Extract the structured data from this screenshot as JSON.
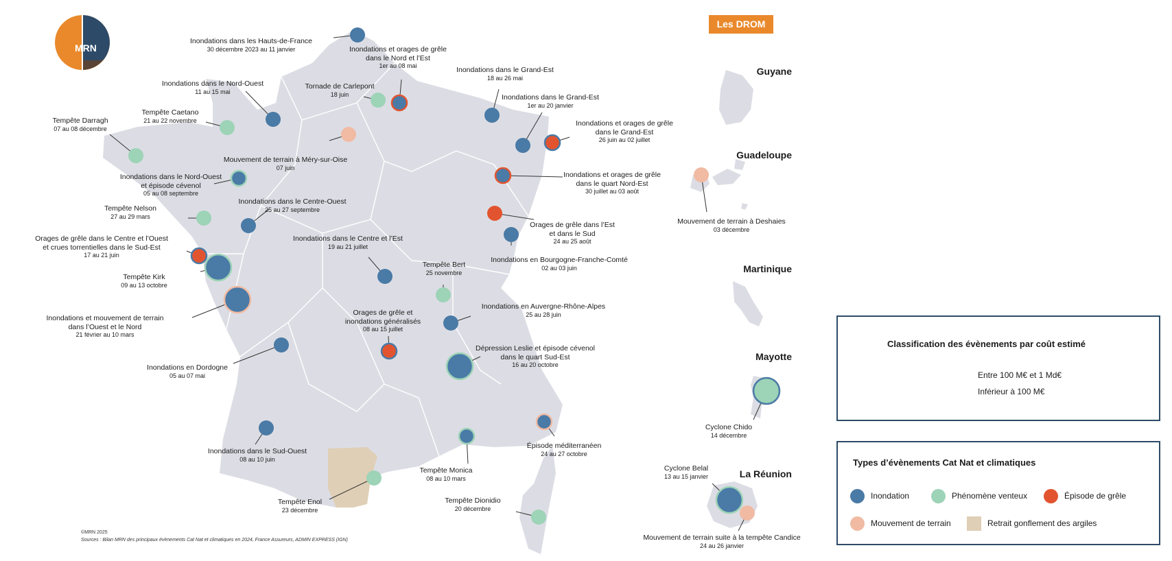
{
  "logo": {
    "text": "MRN"
  },
  "credits": {
    "copyright": "©MRN 2025",
    "sources": "Sources : Bilan MRN des principaux évènements Cat Nat et climatiques en 2024, France Assureurs, ADMIN EXPRESS (IGN)"
  },
  "drom": {
    "badge": "Les DROM",
    "territories": [
      "Guyane",
      "Guadeloupe",
      "Martinique",
      "Mayotte",
      "La Réunion"
    ]
  },
  "colors": {
    "inondation": "#4a7aa6",
    "vent": "#9dd3b7",
    "grele": "#e2542f",
    "terrain": "#f1baa3",
    "argiles": "#dfcfb6",
    "land": "#dcdde4",
    "badge": "#e9892c",
    "frame": "#2d4b68"
  },
  "legend_size": {
    "title": "Classification des évènements par coût estimé",
    "large": "Entre 100 M€ et 1 Md€",
    "small": "Inférieur à 100 M€"
  },
  "legend_types": {
    "title": "Types d’évènements Cat Nat et climatiques",
    "items": [
      {
        "key": "inondation",
        "label": "Inondation",
        "icon": "circle"
      },
      {
        "key": "vent",
        "label": "Phénomène venteux",
        "icon": "circle"
      },
      {
        "key": "grele",
        "label": "Épisode de grêle",
        "icon": "circle"
      },
      {
        "key": "terrain",
        "label": "Mouvement de terrain",
        "icon": "circle"
      },
      {
        "key": "argiles",
        "label": "Retrait gonflement des argiles",
        "icon": "square"
      }
    ]
  },
  "events": [
    {
      "title": "Inondations dans les Hauts-de-France",
      "date": "30 décembre 2023 au 11 janvier",
      "type": "inondation",
      "ring": "inondation",
      "size": "small"
    },
    {
      "title": "Inondations et orages de grêle dans le Nord et l’Est",
      "date": "1er au 08 mai",
      "type": "inondation",
      "ring": "grele",
      "size": "small"
    },
    {
      "title": "Inondations dans le Grand-Est",
      "date": "18 au 26 mai",
      "type": "inondation",
      "ring": "inondation",
      "size": "small"
    },
    {
      "title": "Inondations dans le Nord-Ouest",
      "date": "11 au 15 mai",
      "type": "inondation",
      "ring": "inondation",
      "size": "small"
    },
    {
      "title": "Tornade de Carlepont",
      "date": "18 juin",
      "type": "vent",
      "ring": "vent",
      "size": "small"
    },
    {
      "title": "Inondations dans le Grand-Est",
      "date": "1er au 20 janvier",
      "type": "inondation",
      "ring": "inondation",
      "size": "small"
    },
    {
      "title": "Tempête Caetano",
      "date": "21 au 22 novembre",
      "type": "vent",
      "ring": "vent",
      "size": "small"
    },
    {
      "title": "Tempête Darragh",
      "date": "07 au 08 décembre",
      "type": "vent",
      "ring": "vent",
      "size": "small"
    },
    {
      "title": "Inondations et orages de grêle dans le Grand-Est",
      "date": "26 juin au 02 juillet",
      "type": "grele",
      "ring": "inondation",
      "size": "small"
    },
    {
      "title": "Mouvement de terrain à Méry-sur-Oise",
      "date": "07 juin",
      "type": "terrain",
      "ring": "terrain",
      "size": "small"
    },
    {
      "title": "Inondations dans le Nord-Ouest et épisode cévenol",
      "date": "05 au 08 septembre",
      "type": "inondation",
      "ring": "vent",
      "size": "small"
    },
    {
      "title": "Inondations et orages de grêle dans le quart Nord-Est",
      "date": "30 juillet au 03 août",
      "type": "inondation",
      "ring": "grele",
      "size": "small"
    },
    {
      "title": "Inondations dans le Centre-Ouest",
      "date": "25 au 27 septembre",
      "type": "inondation",
      "ring": "inondation",
      "size": "small"
    },
    {
      "title": "Tempête Nelson",
      "date": "27 au 29 mars",
      "type": "vent",
      "ring": "vent",
      "size": "small"
    },
    {
      "title": "Orages de grêle dans l’Est et dans le Sud",
      "date": "24 au 25 août",
      "type": "grele",
      "ring": "grele",
      "size": "small"
    },
    {
      "title": "Orages de grêle dans le Centre et l’Ouest et crues torrentielles dans le Sud-Est",
      "date": "17 au 21 juin",
      "type": "grele",
      "ring": "inondation",
      "size": "small"
    },
    {
      "title": "Inondations dans le Centre et l’Est",
      "date": "19 au 21 juillet",
      "type": "inondation",
      "ring": "inondation",
      "size": "small"
    },
    {
      "title": "Inondations en Bourgogne-Franche-Comté",
      "date": "02 au 03 juin",
      "type": "inondation",
      "ring": "inondation",
      "size": "small"
    },
    {
      "title": "Tempête Kirk",
      "date": "09 au 13 octobre",
      "type": "inondation",
      "ring": "vent",
      "size": "large"
    },
    {
      "title": "Tempête Bert",
      "date": "25 novembre",
      "type": "vent",
      "ring": "vent",
      "size": "small"
    },
    {
      "title": "Inondations et mouvement de terrain dans l’Ouest et le Nord",
      "date": "21 février au 10 mars",
      "type": "inondation",
      "ring": "terrain",
      "size": "large"
    },
    {
      "title": "Inondations en Auvergne-Rhône-Alpes",
      "date": "25 au 28 juin",
      "type": "inondation",
      "ring": "inondation",
      "size": "small"
    },
    {
      "title": "Orages de grêle et inondations généralisés",
      "date": "08 au 15 juillet",
      "type": "grele",
      "ring": "inondation",
      "size": "small"
    },
    {
      "title": "Dépression Leslie et épisode cévenol dans le quart Sud-Est",
      "date": "16 au 20 octobre",
      "type": "inondation",
      "ring": "vent",
      "size": "large"
    },
    {
      "title": "Inondations en Dordogne",
      "date": "05 au 07 mai",
      "type": "inondation",
      "ring": "inondation",
      "size": "small"
    },
    {
      "title": "Épisode méditerranéen",
      "date": "24 au 27 octobre",
      "type": "inondation",
      "ring": "terrain",
      "size": "small"
    },
    {
      "title": "Inondations dans le Sud-Ouest",
      "date": "08 au 10 juin",
      "type": "inondation",
      "ring": "inondation",
      "size": "small"
    },
    {
      "title": "Tempête Monica",
      "date": "08 au 10 mars",
      "type": "inondation",
      "ring": "vent",
      "size": "small"
    },
    {
      "title": "Tempête Enol",
      "date": "23 décembre",
      "type": "vent",
      "ring": "vent",
      "size": "small"
    },
    {
      "title": "Tempête Dionidio",
      "date": "20 décembre",
      "type": "vent",
      "ring": "vent",
      "size": "small"
    },
    {
      "title": "Mouvement de terrain à Deshaies",
      "date": "03 décembre",
      "type": "terrain",
      "ring": "terrain",
      "size": "small"
    },
    {
      "title": "Cyclone Chido",
      "date": "14 décembre",
      "type": "vent",
      "ring": "inondation",
      "size": "large"
    },
    {
      "title": "Cyclone Belal",
      "date": "13 au 15 janvier",
      "type": "inondation",
      "ring": "vent",
      "size": "large"
    },
    {
      "title": "Mouvement de terrain suite à la tempête Candice",
      "date": "24 au 26 janvier",
      "type": "terrain",
      "ring": "terrain",
      "size": "small"
    }
  ]
}
